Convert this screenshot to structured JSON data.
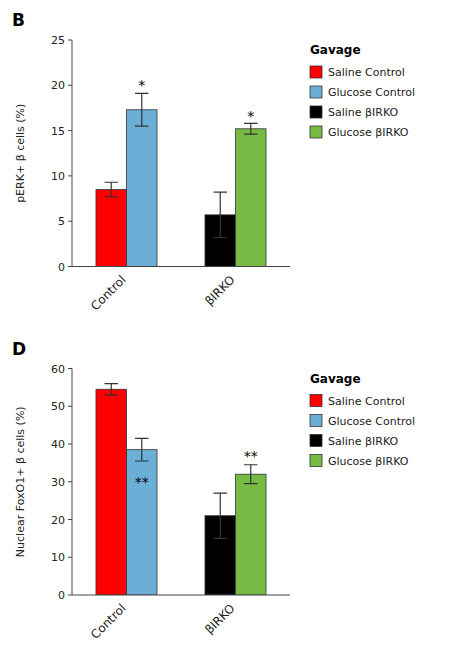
{
  "chart_data": [
    {
      "type": "bar",
      "title": "B",
      "y_label": "pERK+ β cells (%)",
      "categories": [
        "Control",
        "βIRKO"
      ],
      "series": [
        {
          "name": "Saline Control",
          "color": "#ff0000",
          "values": [
            8.5,
            null
          ],
          "errors": [
            0.8,
            null
          ]
        },
        {
          "name": "Glucose Control",
          "color": "#6baed6",
          "values": [
            17.3,
            null
          ],
          "errors": [
            1.8,
            null
          ]
        },
        {
          "name": "Saline βIRKO",
          "color": "#000000",
          "values": [
            null,
            5.7
          ],
          "errors": [
            null,
            2.5
          ]
        },
        {
          "name": "Glucose βIRKO",
          "color": "#77bb44",
          "values": [
            null,
            15.2
          ],
          "errors": [
            null,
            0.6
          ]
        }
      ],
      "legend_title": "Gavage",
      "legend": "upper right",
      "grid": false,
      "ylim": [
        0,
        25
      ],
      "yticks": [
        0,
        5,
        10,
        15,
        20,
        25
      ],
      "annotations": [
        {
          "text": "*",
          "series": "Glucose Control",
          "category": "Control",
          "y": 19.5
        },
        {
          "text": "*",
          "series": "Glucose βIRKO",
          "category": "βIRKO",
          "y": 16.1
        }
      ]
    },
    {
      "type": "bar",
      "title": "D",
      "y_label": "Nuclear FoxO1+ β cells (%)",
      "categories": [
        "Control",
        "βIRKO"
      ],
      "series": [
        {
          "name": "Saline Control",
          "color": "#ff0000",
          "values": [
            54.5,
            null
          ],
          "errors": [
            1.5,
            null
          ]
        },
        {
          "name": "Glucose Control",
          "color": "#6baed6",
          "values": [
            38.5,
            null
          ],
          "errors": [
            3.0,
            null
          ]
        },
        {
          "name": "Saline βIRKO",
          "color": "#000000",
          "values": [
            null,
            21.0
          ],
          "errors": [
            null,
            6.0
          ]
        },
        {
          "name": "Glucose βIRKO",
          "color": "#77bb44",
          "values": [
            null,
            32.0
          ],
          "errors": [
            null,
            2.5
          ]
        }
      ],
      "legend_title": "Gavage",
      "legend": "upper right",
      "grid": false,
      "ylim": [
        0,
        60
      ],
      "yticks": [
        0,
        10,
        20,
        30,
        40,
        50,
        60
      ],
      "annotations": [
        {
          "text": "**",
          "series": "Glucose Control",
          "category": "Control",
          "y": 28.5
        },
        {
          "text": "**",
          "series": "Glucose βIRKO",
          "category": "βIRKO",
          "y": 35.5
        }
      ]
    }
  ]
}
